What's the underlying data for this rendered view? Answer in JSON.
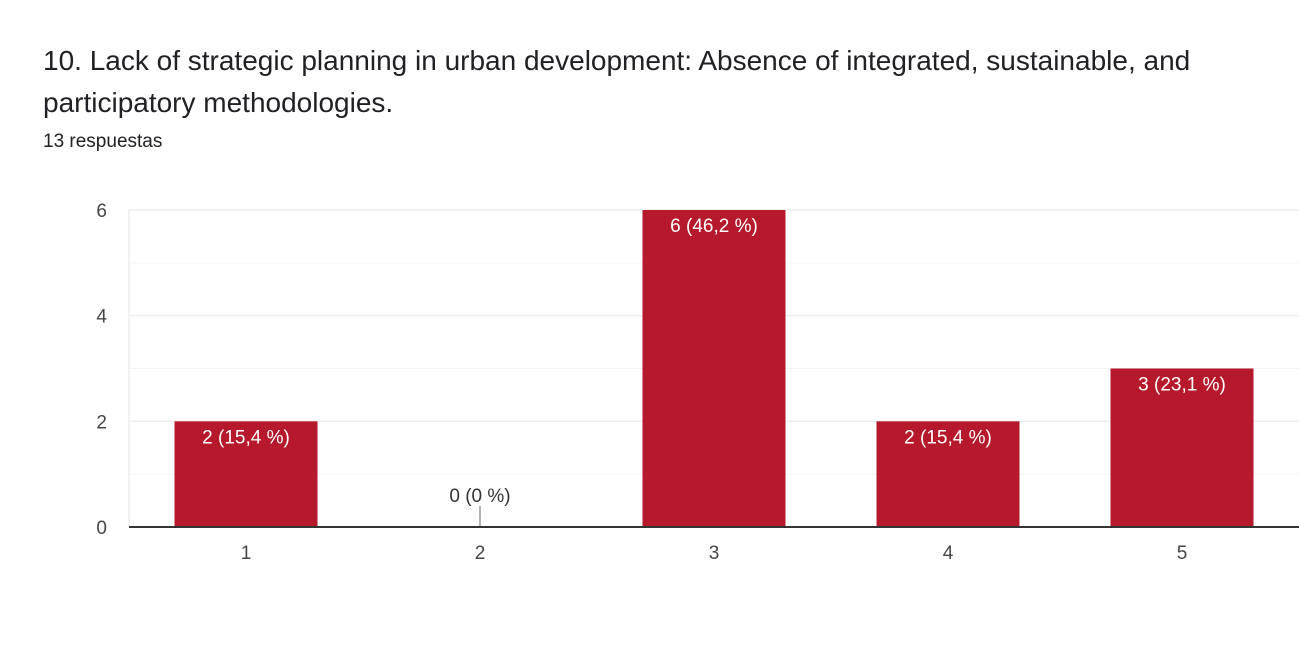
{
  "question": {
    "title": "10.  Lack of strategic planning in urban development: Absence of integrated, sustainable, and participatory methodologies.",
    "responses": "13 respuestas"
  },
  "colors": {
    "bar": "#b5192b",
    "grid": "#eeeeee",
    "axis": "#333333",
    "label_inside": "#ffffff",
    "label_outside": "#333333"
  },
  "chart_data": {
    "type": "bar",
    "categories": [
      "1",
      "2",
      "3",
      "4",
      "5"
    ],
    "values": [
      2,
      0,
      6,
      2,
      3
    ],
    "data_labels": [
      "2 (15,4 %)",
      "0 (0 %)",
      "6 (46,2 %)",
      "2 (15,4 %)",
      "3 (23,1 %)"
    ],
    "y_ticks": [
      "0",
      "2",
      "4",
      "6"
    ],
    "ylim": [
      0,
      6
    ],
    "minor_gridlines": [
      1,
      3,
      5
    ],
    "title": "",
    "xlabel": "",
    "ylabel": "",
    "grid": true,
    "legend": "none"
  }
}
